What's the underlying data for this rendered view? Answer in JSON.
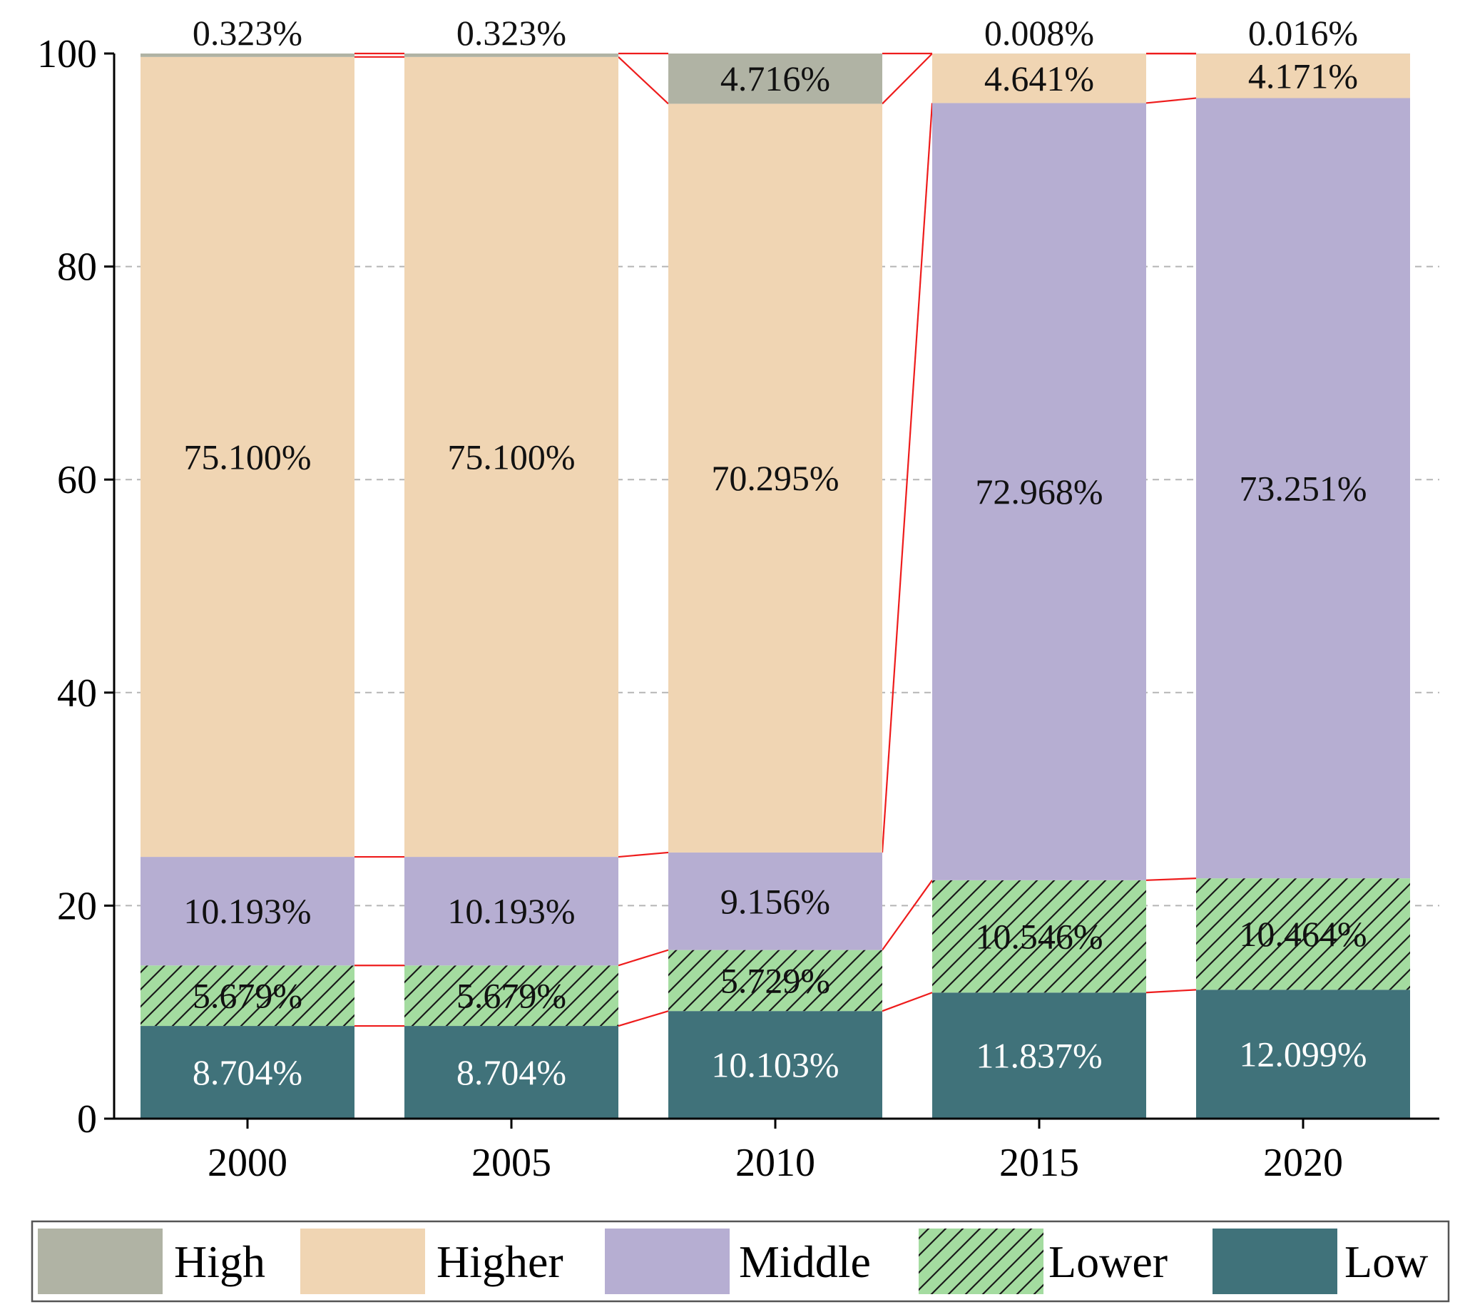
{
  "chart_data": {
    "type": "bar",
    "stacked": true,
    "categories": [
      "2000",
      "2005",
      "2010",
      "2015",
      "2020"
    ],
    "ylim": [
      0,
      100
    ],
    "yticks": [
      "0",
      "20",
      "40",
      "60",
      "80",
      "100"
    ],
    "grid": "horizontal dashed",
    "legend_position": "bottom",
    "connector_color": "#ee1c1c",
    "series": [
      {
        "name": "Low",
        "color": "#40727a",
        "label_color": "#ffffff",
        "hatch": false,
        "values": [
          8.704,
          8.704,
          10.103,
          11.837,
          12.099
        ],
        "labels": [
          "8.704%",
          "8.704%",
          "10.103%",
          "11.837%",
          "12.099%"
        ]
      },
      {
        "name": "Lower",
        "color": "#a4dca0",
        "label_color": "#111111",
        "hatch": true,
        "values": [
          5.679,
          5.679,
          5.729,
          10.546,
          10.464
        ],
        "labels": [
          "5.679%",
          "5.679%",
          "5.729%",
          "10.546%",
          "10.464%"
        ]
      },
      {
        "name": "Middle",
        "color": "#b6aed2",
        "label_color": "#111111",
        "hatch": false,
        "values": [
          10.193,
          10.193,
          9.156,
          72.968,
          73.251
        ],
        "labels": [
          "10.193%",
          "10.193%",
          "9.156%",
          "72.968%",
          "73.251%"
        ]
      },
      {
        "name": "Higher",
        "color": "#f0d5b3",
        "label_color": "#111111",
        "hatch": false,
        "values": [
          75.1,
          75.1,
          70.295,
          4.641,
          4.171
        ],
        "labels": [
          "75.100%",
          "75.100%",
          "70.295%",
          "4.641%",
          "4.171%"
        ]
      },
      {
        "name": "High",
        "color": "#b0b3a4",
        "label_color": "#111111",
        "hatch": false,
        "values": [
          0.323,
          0.323,
          4.716,
          0.008,
          0.016
        ],
        "labels": [
          "0.323%",
          "0.323%",
          "4.716%",
          "0.008%",
          "0.016%"
        ]
      }
    ],
    "legend": [
      "High",
      "Higher",
      "Middle",
      "Lower",
      "Low"
    ]
  }
}
